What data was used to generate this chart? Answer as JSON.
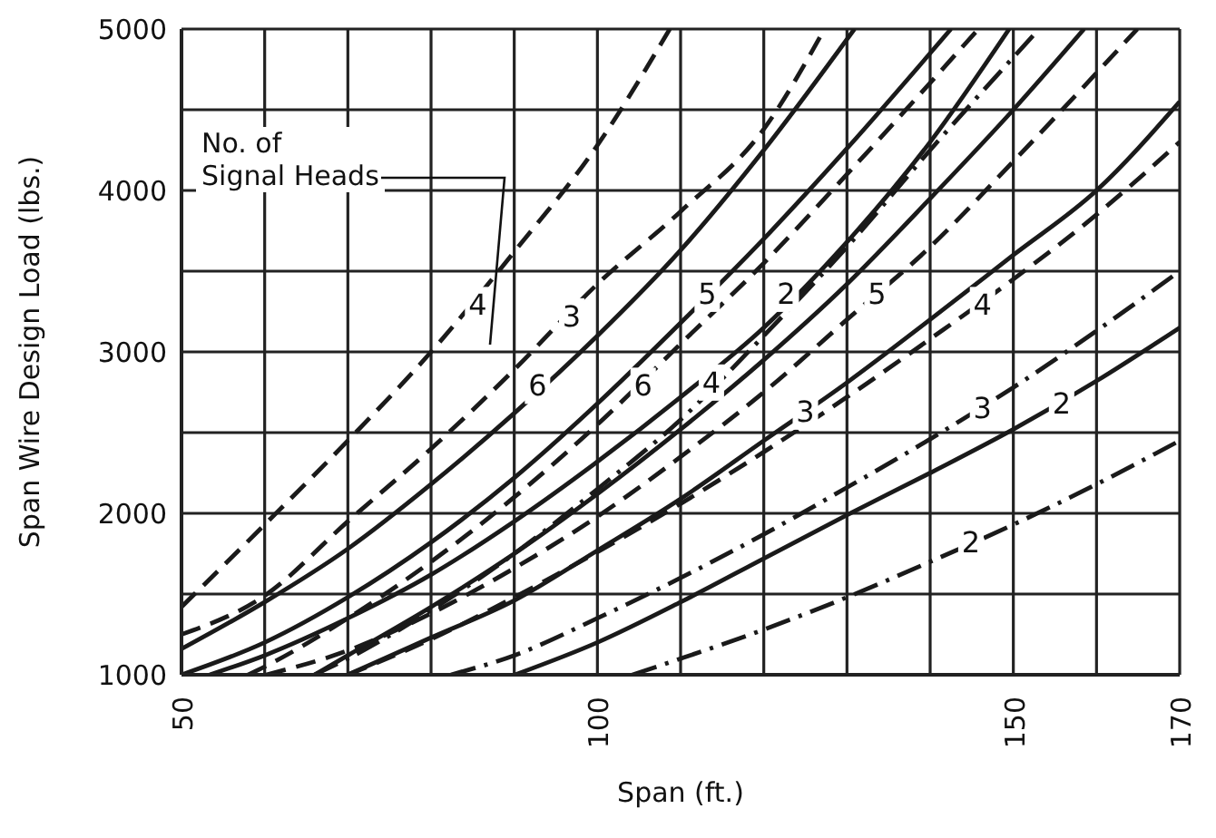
{
  "chart_data": {
    "type": "line",
    "xlabel": "Span (ft.)",
    "ylabel": "Span Wire Design Load (lbs.)",
    "xlim": [
      50,
      170
    ],
    "ylim": [
      1000,
      5000
    ],
    "xticks": [
      50,
      {
        "value": 60,
        "label": null
      },
      {
        "value": 70,
        "label": null
      },
      {
        "value": 80,
        "label": null
      },
      {
        "value": 90,
        "label": null
      },
      100,
      {
        "value": 110,
        "label": null
      },
      {
        "value": 120,
        "label": null
      },
      {
        "value": 130,
        "label": null
      },
      {
        "value": 140,
        "label": null
      },
      150,
      {
        "value": 160,
        "label": null
      },
      170
    ],
    "yticks": [
      1000,
      {
        "value": 1500,
        "label": null
      },
      2000,
      {
        "value": 2500,
        "label": null
      },
      3000,
      {
        "value": 3500,
        "label": null
      },
      4000,
      {
        "value": 4500,
        "label": null
      },
      5000
    ],
    "grid": true,
    "marker": "none",
    "series": [
      {
        "color": "#1a1a1a",
        "line_style": "dashed",
        "x": [
          50,
          60,
          70,
          80,
          90,
          100,
          108.7
        ],
        "values": [
          1420,
          1930,
          2450,
          3000,
          3620,
          4280,
          5000
        ]
      },
      {
        "color": "#1a1a1a",
        "line_style": "dashed",
        "x": [
          50,
          60,
          70,
          80,
          90,
          100,
          110,
          120,
          127.3
        ],
        "values": [
          1250,
          1490,
          1950,
          2400,
          2890,
          3420,
          3870,
          4380,
          5000
        ]
      },
      {
        "color": "#1a1a1a",
        "line_style": "solid",
        "x": [
          50,
          60,
          70,
          80,
          90,
          100,
          110,
          120,
          130.9
        ],
        "values": [
          1160,
          1450,
          1780,
          2180,
          2620,
          3100,
          3630,
          4250,
          5000
        ]
      },
      {
        "color": "#1a1a1a",
        "line_style": "solid",
        "x": [
          50,
          60,
          70,
          80,
          90,
          100,
          110,
          120,
          130,
          142.5
        ],
        "values": [
          1000,
          1200,
          1480,
          1820,
          2220,
          2680,
          3180,
          3700,
          4260,
          5000
        ]
      },
      {
        "color": "#1a1a1a",
        "line_style": "solid",
        "x": [
          53.4,
          60,
          70,
          80,
          90,
          100,
          110,
          120,
          130,
          140,
          149.5
        ],
        "values": [
          1000,
          1120,
          1350,
          1620,
          1950,
          2320,
          2720,
          3150,
          3680,
          4300,
          5000
        ]
      },
      {
        "color": "#1a1a1a",
        "line_style": "solid",
        "x": [
          66,
          70,
          80,
          90,
          100,
          110,
          120,
          130,
          140,
          150,
          158.5
        ],
        "values": [
          1000,
          1120,
          1420,
          1750,
          2120,
          2520,
          2950,
          3420,
          3950,
          4500,
          5000
        ]
      },
      {
        "color": "#1a1a1a",
        "line_style": "solid",
        "x": [
          70,
          80,
          90,
          100,
          110,
          120,
          130,
          140,
          150,
          160,
          170
        ],
        "values": [
          1000,
          1230,
          1460,
          1770,
          2090,
          2450,
          2810,
          3200,
          3600,
          4000,
          4550
        ]
      },
      {
        "color": "#1a1a1a",
        "line_style": "solid",
        "x": [
          90.1,
          100,
          110,
          120,
          130,
          140,
          150,
          160,
          170
        ],
        "values": [
          1000,
          1200,
          1450,
          1720,
          1990,
          2250,
          2520,
          2820,
          3150
        ]
      },
      {
        "color": "#1a1a1a",
        "line_style": "dashed",
        "x": [
          58,
          60,
          70,
          80,
          90,
          100,
          110,
          120,
          130,
          145.8
        ],
        "values": [
          1000,
          1050,
          1350,
          1700,
          2100,
          2550,
          3050,
          3550,
          4100,
          5000
        ]
      },
      {
        "color": "#1a1a1a",
        "line_style": "dashdot",
        "x": [
          66,
          70,
          80,
          90,
          100,
          110,
          120,
          130,
          140,
          153.1
        ],
        "values": [
          1000,
          1100,
          1400,
          1750,
          2150,
          2580,
          3100,
          3650,
          4250,
          5000
        ]
      },
      {
        "color": "#1a1a1a",
        "line_style": "dashed",
        "x": [
          60.2,
          70,
          80,
          90,
          100,
          110,
          120,
          130,
          140,
          150,
          164.9
        ],
        "values": [
          1000,
          1150,
          1380,
          1660,
          1980,
          2350,
          2750,
          3200,
          3650,
          4180,
          5000
        ]
      },
      {
        "color": "#1a1a1a",
        "line_style": "dashed",
        "x": [
          70,
          80,
          90,
          100,
          110,
          120,
          130,
          140,
          150,
          160,
          170
        ],
        "values": [
          1000,
          1220,
          1480,
          1760,
          2060,
          2380,
          2720,
          3080,
          3450,
          3850,
          4300
        ]
      },
      {
        "color": "#1a1a1a",
        "line_style": "dashdot",
        "x": [
          82.4,
          90,
          100,
          110,
          120,
          130,
          140,
          150,
          160,
          170
        ],
        "values": [
          1000,
          1120,
          1350,
          1600,
          1870,
          2160,
          2460,
          2780,
          3130,
          3500
        ]
      },
      {
        "color": "#1a1a1a",
        "line_style": "dashdot",
        "x": [
          104.2,
          110,
          120,
          130,
          140,
          150,
          160,
          170
        ],
        "values": [
          1000,
          1100,
          1280,
          1480,
          1700,
          1930,
          2180,
          2450
        ]
      }
    ],
    "annotations": [
      "No. of Signal Heads",
      {
        "text": "4",
        "x": 85.6,
        "y": 3290
      },
      {
        "text": "3",
        "x": 96.9,
        "y": 3220
      },
      {
        "text": "6",
        "x": 92.8,
        "y": 2790
      },
      {
        "text": "6",
        "x": 105.5,
        "y": 2790
      },
      {
        "text": "5",
        "x": 113.2,
        "y": 3360
      },
      {
        "text": "4",
        "x": 113.7,
        "y": 2810
      },
      {
        "text": "2",
        "x": 122.7,
        "y": 3360
      },
      {
        "text": "3",
        "x": 125,
        "y": 2630
      },
      {
        "text": "5",
        "x": 133.6,
        "y": 3360
      },
      {
        "text": "4",
        "x": 146.3,
        "y": 3290
      },
      {
        "text": "3",
        "x": 146.3,
        "y": 2650
      },
      {
        "text": "2",
        "x": 155.8,
        "y": 2680
      },
      {
        "text": "2",
        "x": 144.9,
        "y": 1820
      }
    ]
  }
}
